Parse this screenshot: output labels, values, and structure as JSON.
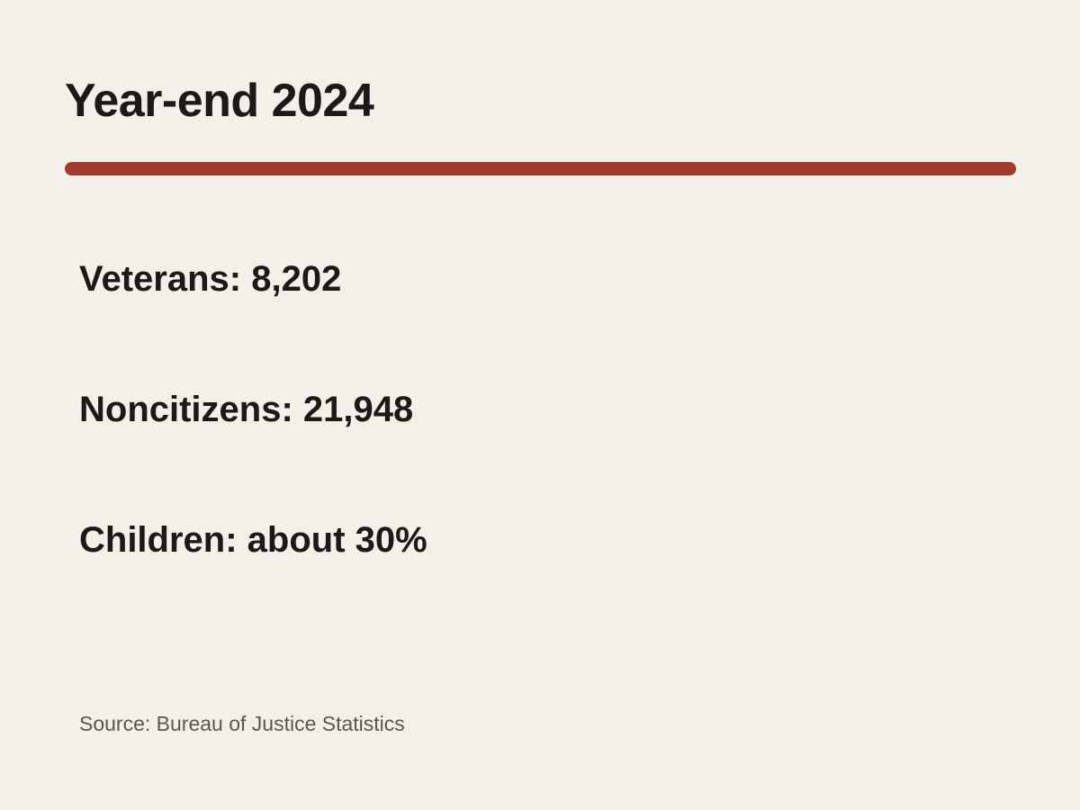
{
  "title": "Year-end 2024",
  "accent_color": "#a23b2e",
  "stats": [
    {
      "text": "Veterans: 8,202"
    },
    {
      "text": "Noncitizens: 21,948"
    },
    {
      "text": "Children: about 30%"
    }
  ],
  "source": "Source: Bureau of Justice Statistics"
}
